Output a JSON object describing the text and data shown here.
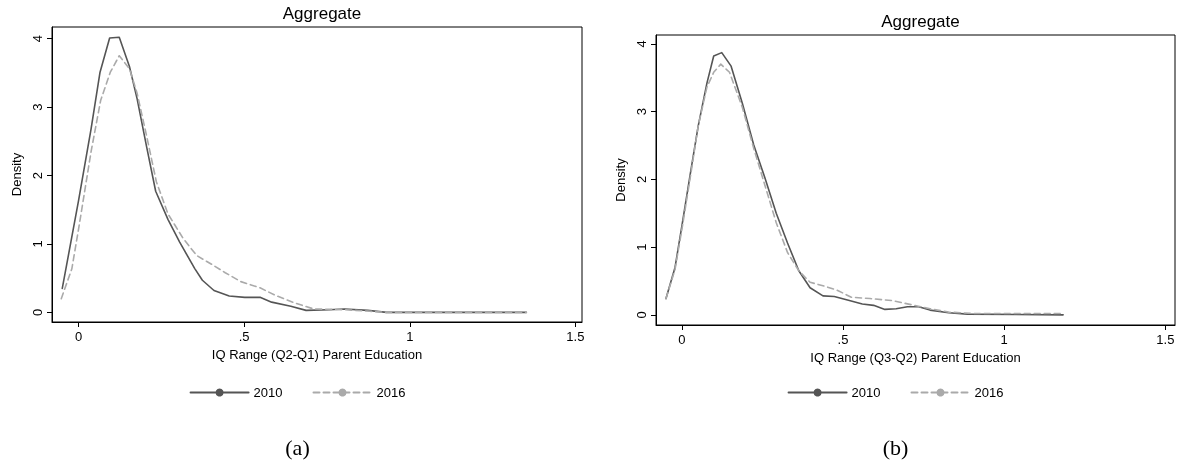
{
  "chart_data": [
    {
      "type": "line",
      "title": "Aggregate",
      "xlabel": "IQ Range (Q2-Q1) Parent Education",
      "ylabel": "Density",
      "annotations": [
        "(a)"
      ],
      "xlim": [
        -0.08,
        1.52
      ],
      "ylim": [
        -0.14,
        4.17
      ],
      "xticks": [
        0,
        {
          "value": 0.5,
          "label": ".5"
        },
        1,
        1.5
      ],
      "yticks": [
        0,
        1,
        2,
        3,
        4
      ],
      "grid": false,
      "legend": "bottom",
      "marker": "none",
      "series": [
        {
          "name": "2010",
          "color": "#555555",
          "line_style": "solid",
          "x": [
            -0.049,
            0,
            0.038,
            0.065,
            0.094,
            0.123,
            0.154,
            0.177,
            0.206,
            0.233,
            0.27,
            0.305,
            0.351,
            0.374,
            0.409,
            0.455,
            0.502,
            0.548,
            0.583,
            0.641,
            0.687,
            0.757,
            0.803,
            0.873,
            0.93,
            1.352
          ],
          "values": [
            0.35,
            1.63,
            2.68,
            3.51,
            4.01,
            4.02,
            3.59,
            3.12,
            2.41,
            1.77,
            1.36,
            1.03,
            0.64,
            0.47,
            0.32,
            0.24,
            0.22,
            0.22,
            0.15,
            0.09,
            0.03,
            0.04,
            0.05,
            0.03,
            0,
            0
          ]
        },
        {
          "name": "2016",
          "color": "#aaaaaa",
          "line_style": "dashed",
          "x": [
            -0.052,
            -0.02,
            0.003,
            0.038,
            0.067,
            0.096,
            0.123,
            0.154,
            0.177,
            0.206,
            0.235,
            0.27,
            0.316,
            0.357,
            0.403,
            0.443,
            0.49,
            0.548,
            0.594,
            0.652,
            0.71,
            0.803,
            0.873,
            0.93,
            1.352
          ],
          "values": [
            0.2,
            0.64,
            1.3,
            2.35,
            3.1,
            3.51,
            3.75,
            3.56,
            3.2,
            2.57,
            1.91,
            1.44,
            1.08,
            0.83,
            0.7,
            0.58,
            0.45,
            0.36,
            0.25,
            0.14,
            0.05,
            0.04,
            0.02,
            0,
            0
          ]
        }
      ]
    },
    {
      "type": "line",
      "title": "Aggregate",
      "xlabel": "IQ Range (Q3-Q2) Parent Education",
      "ylabel": "Density",
      "annotations": [
        "(b)"
      ],
      "xlim": [
        -0.08,
        1.53
      ],
      "ylim": [
        -0.15,
        4.13
      ],
      "xticks": [
        0,
        {
          "value": 0.5,
          "label": ".5"
        },
        1,
        1.5
      ],
      "yticks": [
        0,
        1,
        2,
        3,
        4
      ],
      "grid": false,
      "legend": "bottom",
      "marker": "none",
      "series": [
        {
          "name": "2010",
          "color": "#555555",
          "line_style": "solid",
          "x": [
            -0.049,
            -0.021,
            0.002,
            0.026,
            0.051,
            0.078,
            0.099,
            0.124,
            0.153,
            0.188,
            0.223,
            0.258,
            0.293,
            0.328,
            0.363,
            0.398,
            0.438,
            0.473,
            0.514,
            0.56,
            0.595,
            0.63,
            0.665,
            0.7,
            0.735,
            0.77,
            0.828,
            0.886,
            1.183
          ],
          "values": [
            0.24,
            0.7,
            1.36,
            2.07,
            2.79,
            3.42,
            3.82,
            3.87,
            3.67,
            3.12,
            2.51,
            2.02,
            1.5,
            1.06,
            0.65,
            0.4,
            0.28,
            0.27,
            0.22,
            0.16,
            0.14,
            0.08,
            0.09,
            0.12,
            0.12,
            0.07,
            0.03,
            0.01,
            0
          ]
        },
        {
          "name": "2016",
          "color": "#aaaaaa",
          "line_style": "dashed",
          "x": [
            -0.049,
            -0.021,
            0.002,
            0.026,
            0.051,
            0.078,
            0.099,
            0.121,
            0.148,
            0.188,
            0.223,
            0.258,
            0.293,
            0.328,
            0.363,
            0.398,
            0.438,
            0.479,
            0.526,
            0.584,
            0.653,
            0.712,
            0.77,
            0.828,
            0.909,
            1.183
          ],
          "values": [
            0.24,
            0.67,
            1.31,
            2.02,
            2.79,
            3.36,
            3.58,
            3.7,
            3.58,
            3.06,
            2.46,
            1.91,
            1.36,
            0.92,
            0.65,
            0.48,
            0.43,
            0.37,
            0.26,
            0.24,
            0.21,
            0.15,
            0.09,
            0.04,
            0.02,
            0.02
          ]
        }
      ]
    }
  ]
}
